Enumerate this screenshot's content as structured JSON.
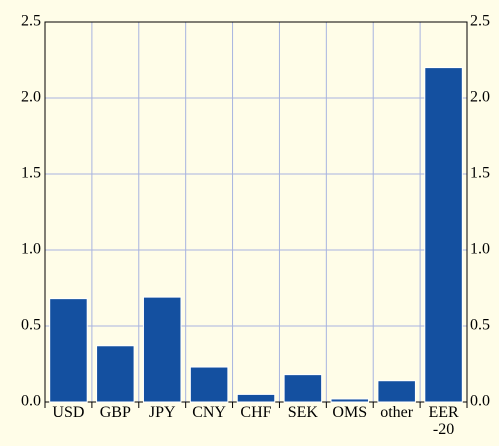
{
  "chart_data": {
    "type": "bar",
    "categories": [
      "USD",
      "GBP",
      "JPY",
      "CNY",
      "CHF",
      "SEK",
      "OMS",
      "other",
      "EER -20"
    ],
    "values": [
      0.68,
      0.37,
      0.69,
      0.23,
      0.05,
      0.18,
      0.02,
      0.14,
      2.2
    ],
    "color": "#1450a0",
    "ylim": [
      0,
      2.5
    ],
    "yticks": [
      {
        "value": 0,
        "label": "0.0"
      },
      0.5,
      {
        "value": 1,
        "label": "1.0"
      },
      1.5,
      {
        "value": 2,
        "label": "2.0"
      },
      2.5
    ],
    "grid": true
  }
}
